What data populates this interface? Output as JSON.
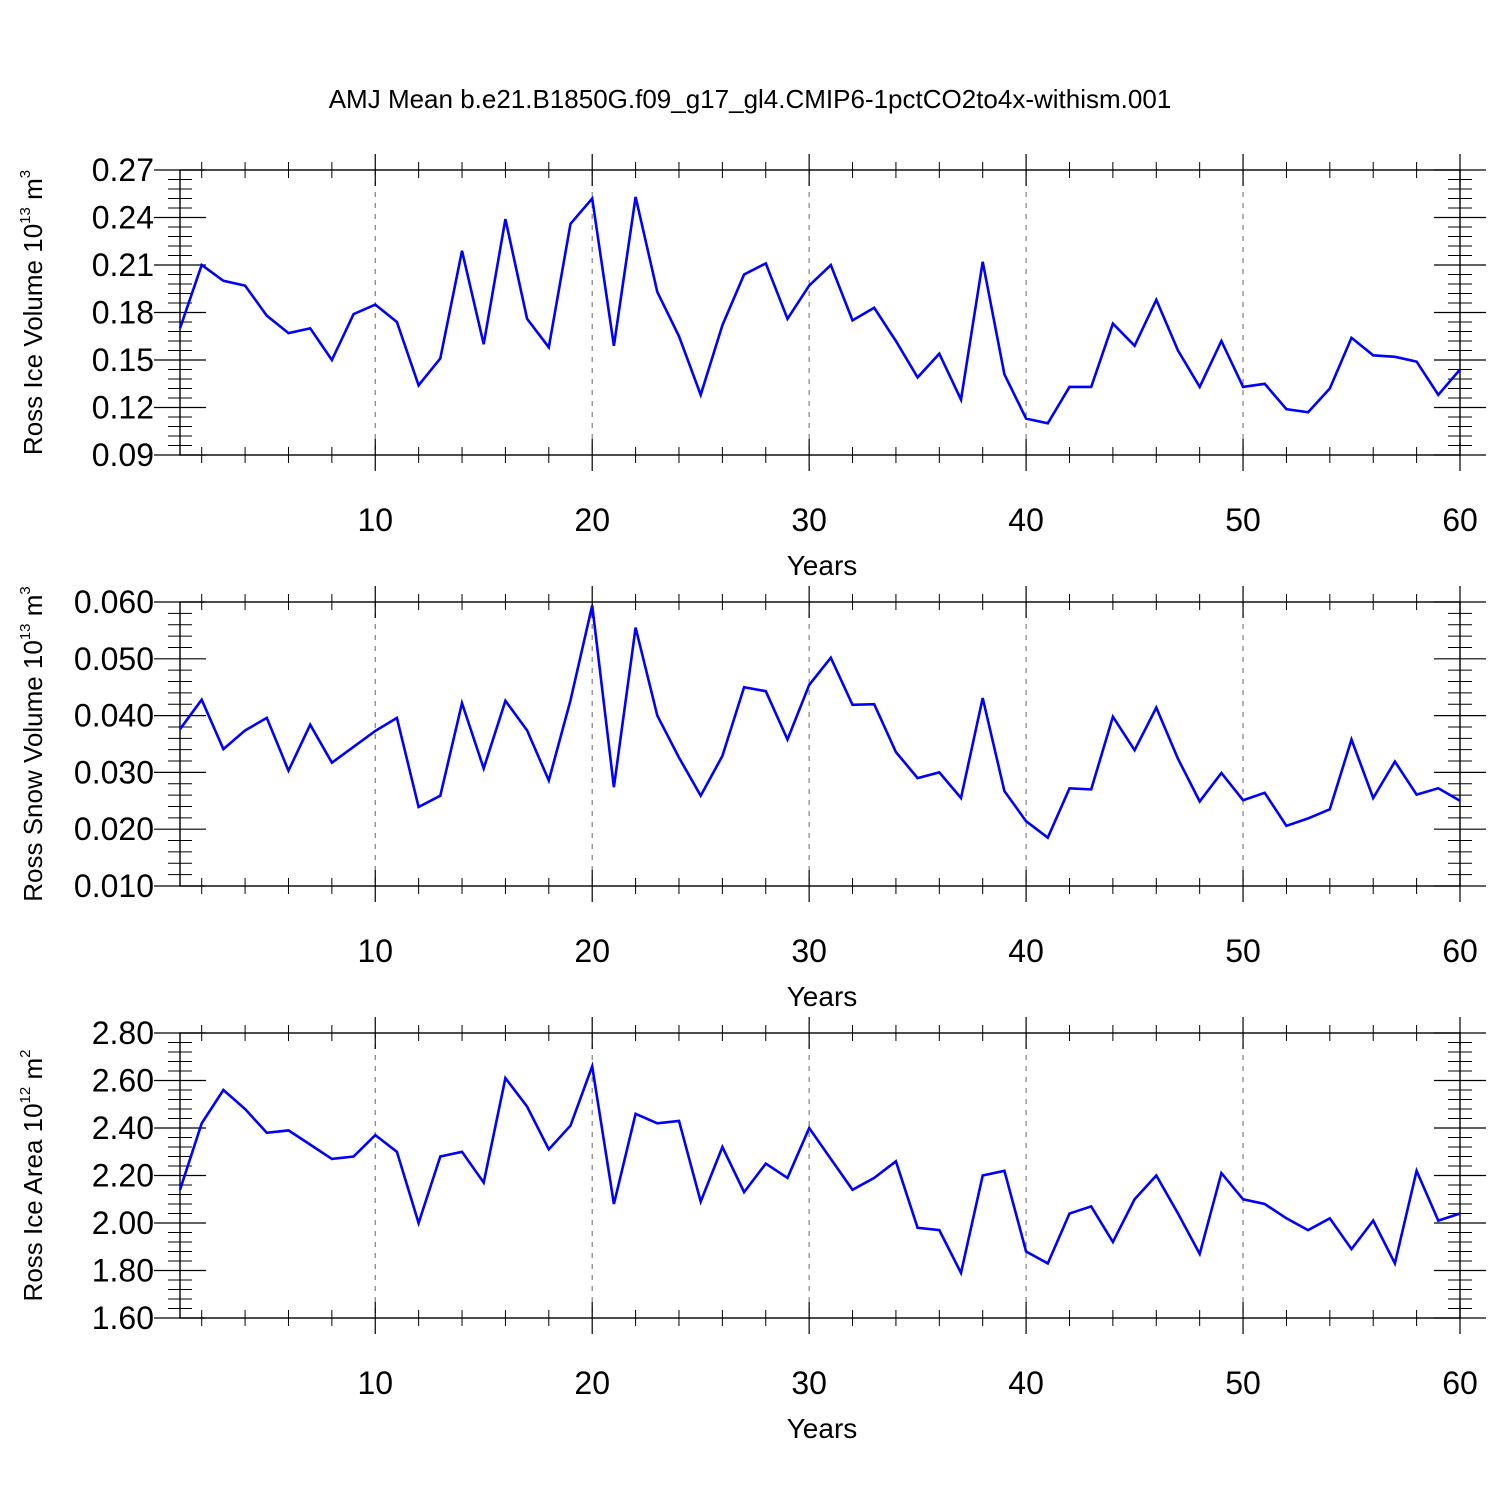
{
  "title": "AMJ Mean b.e21.B1850G.f09_g17_gl4.CMIP6-1pctCO2to4x-withism.001",
  "colors": {
    "line": "#0000ff",
    "axis": "#000000",
    "grid": "#808080"
  },
  "chart_data": [
    {
      "type": "line",
      "name": "ice-volume",
      "ylabel": {
        "main": "Ross Ice Volume 10",
        "exp": "13",
        "unit": " m",
        "unit_exp": "3"
      },
      "xlabel": "Years",
      "xlim": [
        1,
        60
      ],
      "ylim": [
        0.09,
        0.27
      ],
      "xticks": [
        10,
        20,
        30,
        40,
        50,
        60
      ],
      "xtick_labels": [
        "10",
        "20",
        "30",
        "40",
        "50",
        "60"
      ],
      "yticks": [
        0.09,
        0.12,
        0.15,
        0.18,
        0.21,
        0.24,
        0.27
      ],
      "ytick_labels": [
        "0.09",
        "0.12",
        "0.15",
        "0.18",
        "0.21",
        "0.24",
        "0.27"
      ],
      "grid": "dashed vertical at major x ticks",
      "x": [
        1,
        2,
        3,
        4,
        5,
        6,
        7,
        8,
        9,
        10,
        11,
        12,
        13,
        14,
        15,
        16,
        17,
        18,
        19,
        20,
        21,
        22,
        23,
        24,
        25,
        26,
        27,
        28,
        29,
        30,
        31,
        32,
        33,
        34,
        35,
        36,
        37,
        38,
        39,
        40,
        41,
        42,
        43,
        44,
        45,
        46,
        47,
        48,
        49,
        50,
        51,
        52,
        53,
        54,
        55,
        56,
        57,
        58,
        59,
        60
      ],
      "values": [
        0.17,
        0.21,
        0.2,
        0.197,
        0.178,
        0.167,
        0.17,
        0.15,
        0.179,
        0.185,
        0.174,
        0.134,
        0.151,
        0.219,
        0.16,
        0.239,
        0.176,
        0.158,
        0.236,
        0.252,
        0.159,
        0.253,
        0.193,
        0.165,
        0.128,
        0.172,
        0.204,
        0.211,
        0.176,
        0.197,
        0.21,
        0.175,
        0.183,
        0.162,
        0.139,
        0.154,
        0.125,
        0.212,
        0.141,
        0.113,
        0.11,
        0.133,
        0.133,
        0.173,
        0.159,
        0.188,
        0.156,
        0.133,
        0.162,
        0.133,
        0.135,
        0.119,
        0.117,
        0.132,
        0.164,
        0.153,
        0.152,
        0.149,
        0.128,
        0.144
      ]
    },
    {
      "type": "line",
      "name": "snow-volume",
      "ylabel": {
        "main": "Ross Snow Volume 10",
        "exp": "13",
        "unit": " m",
        "unit_exp": "3"
      },
      "xlabel": "Years",
      "xlim": [
        1,
        60
      ],
      "ylim": [
        0.01,
        0.06
      ],
      "xticks": [
        10,
        20,
        30,
        40,
        50,
        60
      ],
      "xtick_labels": [
        "10",
        "20",
        "30",
        "40",
        "50",
        "60"
      ],
      "yticks": [
        0.01,
        0.02,
        0.03,
        0.04,
        0.05,
        0.06
      ],
      "ytick_labels": [
        "0.010",
        "0.020",
        "0.030",
        "0.040",
        "0.050",
        "0.060"
      ],
      "grid": "dashed vertical at major x ticks",
      "x": [
        1,
        2,
        3,
        4,
        5,
        6,
        7,
        8,
        9,
        10,
        11,
        12,
        13,
        14,
        15,
        16,
        17,
        18,
        19,
        20,
        21,
        22,
        23,
        24,
        25,
        26,
        27,
        28,
        29,
        30,
        31,
        32,
        33,
        34,
        35,
        36,
        37,
        38,
        39,
        40,
        41,
        42,
        43,
        44,
        45,
        46,
        47,
        48,
        49,
        50,
        51,
        52,
        53,
        54,
        55,
        56,
        57,
        58,
        59,
        60
      ],
      "values": [
        0.0376,
        0.0428,
        0.0341,
        0.0374,
        0.0396,
        0.0303,
        0.0384,
        0.0317,
        0.0345,
        0.0373,
        0.0396,
        0.0239,
        0.0259,
        0.0422,
        0.0307,
        0.0426,
        0.0374,
        0.0286,
        0.0427,
        0.0594,
        0.0274,
        0.0555,
        0.04,
        0.0326,
        0.0259,
        0.0329,
        0.045,
        0.0443,
        0.0358,
        0.0454,
        0.0502,
        0.0419,
        0.042,
        0.0336,
        0.029,
        0.03,
        0.0255,
        0.0431,
        0.0267,
        0.0214,
        0.0185,
        0.0272,
        0.027,
        0.0398,
        0.0339,
        0.0414,
        0.0324,
        0.0249,
        0.0299,
        0.0251,
        0.0264,
        0.0206,
        0.0219,
        0.0235,
        0.0358,
        0.0255,
        0.0319,
        0.0261,
        0.0272,
        0.025
      ]
    },
    {
      "type": "line",
      "name": "ice-area",
      "ylabel": {
        "main": "Ross Ice Area 10",
        "exp": "12",
        "unit": " m",
        "unit_exp": "2"
      },
      "xlabel": "Years",
      "xlim": [
        1,
        60
      ],
      "ylim": [
        1.6,
        2.8
      ],
      "xticks": [
        10,
        20,
        30,
        40,
        50,
        60
      ],
      "xtick_labels": [
        "10",
        "20",
        "30",
        "40",
        "50",
        "60"
      ],
      "yticks": [
        1.6,
        1.8,
        2.0,
        2.2,
        2.4,
        2.6,
        2.8
      ],
      "ytick_labels": [
        "1.60",
        "1.80",
        "2.00",
        "2.20",
        "2.40",
        "2.60",
        "2.80"
      ],
      "grid": "dashed vertical at major x ticks",
      "x": [
        1,
        2,
        3,
        4,
        5,
        6,
        7,
        8,
        9,
        10,
        11,
        12,
        13,
        14,
        15,
        16,
        17,
        18,
        19,
        20,
        21,
        22,
        23,
        24,
        25,
        26,
        27,
        28,
        29,
        30,
        31,
        32,
        33,
        34,
        35,
        36,
        37,
        38,
        39,
        40,
        41,
        42,
        43,
        44,
        45,
        46,
        47,
        48,
        49,
        50,
        51,
        52,
        53,
        54,
        55,
        56,
        57,
        58,
        59,
        60
      ],
      "values": [
        2.14,
        2.42,
        2.56,
        2.48,
        2.38,
        2.39,
        2.33,
        2.27,
        2.28,
        2.37,
        2.3,
        2.0,
        2.28,
        2.3,
        2.17,
        2.61,
        2.49,
        2.31,
        2.41,
        2.66,
        2.08,
        2.46,
        2.42,
        2.43,
        2.09,
        2.32,
        2.13,
        2.25,
        2.19,
        2.4,
        2.27,
        2.14,
        2.19,
        2.26,
        1.98,
        1.97,
        1.79,
        2.2,
        2.22,
        1.88,
        1.83,
        2.04,
        2.07,
        1.92,
        2.1,
        2.2,
        2.04,
        1.87,
        2.21,
        2.1,
        2.08,
        2.02,
        1.97,
        2.02,
        1.89,
        2.01,
        1.83,
        2.22,
        2.01,
        2.04
      ]
    }
  ]
}
